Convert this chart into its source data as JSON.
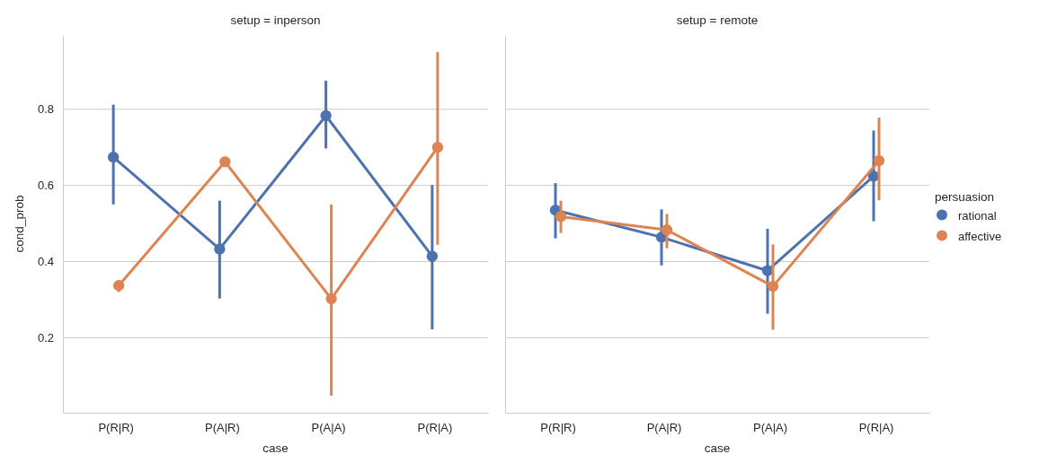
{
  "chart_data": [
    {
      "type": "line",
      "title": "setup = inperson",
      "xlabel": "case",
      "ylabel": "cond_prob",
      "categories": [
        "P(R|R)",
        "P(A|R)",
        "P(A|A)",
        "P(R|A)"
      ],
      "ylim": [
        0.003,
        0.995
      ],
      "yticks": [
        0.2,
        0.4,
        0.6,
        0.8
      ],
      "grid": "y",
      "marker": "circle",
      "legend": false,
      "series": [
        {
          "color": "#4c72b0",
          "values": [
            0.674,
            0.433,
            0.783,
            0.414
          ],
          "errors": [
            [
              0.55,
              0.812
            ],
            [
              0.303,
              0.56
            ],
            [
              0.697,
              0.875
            ],
            [
              0.222,
              0.601
            ]
          ]
        },
        {
          "color": "#dd8452",
          "values": [
            0.337,
            0.662,
            0.302,
            0.7
          ],
          "errors": [
            [
              0.32,
              0.35
            ],
            [
              0.65,
              0.675
            ],
            [
              0.048,
              0.55
            ],
            [
              0.444,
              0.95
            ]
          ]
        }
      ]
    },
    {
      "type": "line",
      "title": "setup = remote",
      "xlabel": "case",
      "categories": [
        "P(R|R)",
        "P(A|R)",
        "P(A|A)",
        "P(R|A)"
      ],
      "ylim": [
        0.003,
        0.995
      ],
      "yticks": [
        0.2,
        0.4,
        0.6,
        0.8
      ],
      "tick_labels": "x",
      "grid": "y",
      "marker": "circle",
      "legend": "right",
      "legend_title": "persuasion",
      "series": [
        {
          "name": "rational",
          "color": "#4c72b0",
          "values": [
            0.535,
            0.464,
            0.376,
            0.624
          ],
          "errors": [
            [
              0.461,
              0.606
            ],
            [
              0.39,
              0.537
            ],
            [
              0.263,
              0.486
            ],
            [
              0.506,
              0.744
            ]
          ]
        },
        {
          "name": "affective",
          "color": "#dd8452",
          "values": [
            0.518,
            0.483,
            0.335,
            0.665
          ],
          "errors": [
            [
              0.475,
              0.56
            ],
            [
              0.435,
              0.525
            ],
            [
              0.221,
              0.445
            ],
            [
              0.561,
              0.778
            ]
          ]
        }
      ]
    }
  ]
}
